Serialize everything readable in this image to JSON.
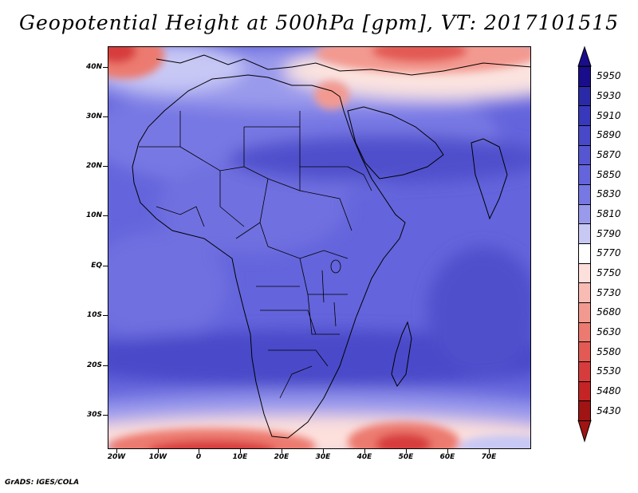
{
  "title": "Geopotential Height at 500hPa [gpm], VT: 2017101515",
  "credit": "GrADS: IGES/COLA",
  "map": {
    "lat_labels": [
      "40N",
      "30N",
      "20N",
      "10N",
      "EQ",
      "10S",
      "20S",
      "30S"
    ],
    "lon_labels": [
      "20W",
      "10W",
      "0",
      "10E",
      "20E",
      "30E",
      "40E",
      "50E",
      "60E",
      "70E"
    ],
    "lat_range": [
      -36,
      45
    ],
    "lon_range": [
      -22,
      79
    ]
  },
  "colorbar": {
    "levels": [
      "5950",
      "5930",
      "5910",
      "5890",
      "5870",
      "5850",
      "5830",
      "5810",
      "5790",
      "5770",
      "5750",
      "5730",
      "5680",
      "5630",
      "5580",
      "5530",
      "5480",
      "5430"
    ],
    "colors": [
      "#1a0d8c",
      "#2a2aa8",
      "#3838bd",
      "#4848c9",
      "#5656d3",
      "#6464dc",
      "#7878e4",
      "#9a9aec",
      "#c8c8f5",
      "#ffffff",
      "#fde0dc",
      "#f9bcb4",
      "#f39a90",
      "#ec7a70",
      "#e35a54",
      "#d73c3c",
      "#c42424",
      "#a01414"
    ],
    "top_arrow_color": "#1a0d8c",
    "bottom_arrow_color": "#a01414"
  }
}
